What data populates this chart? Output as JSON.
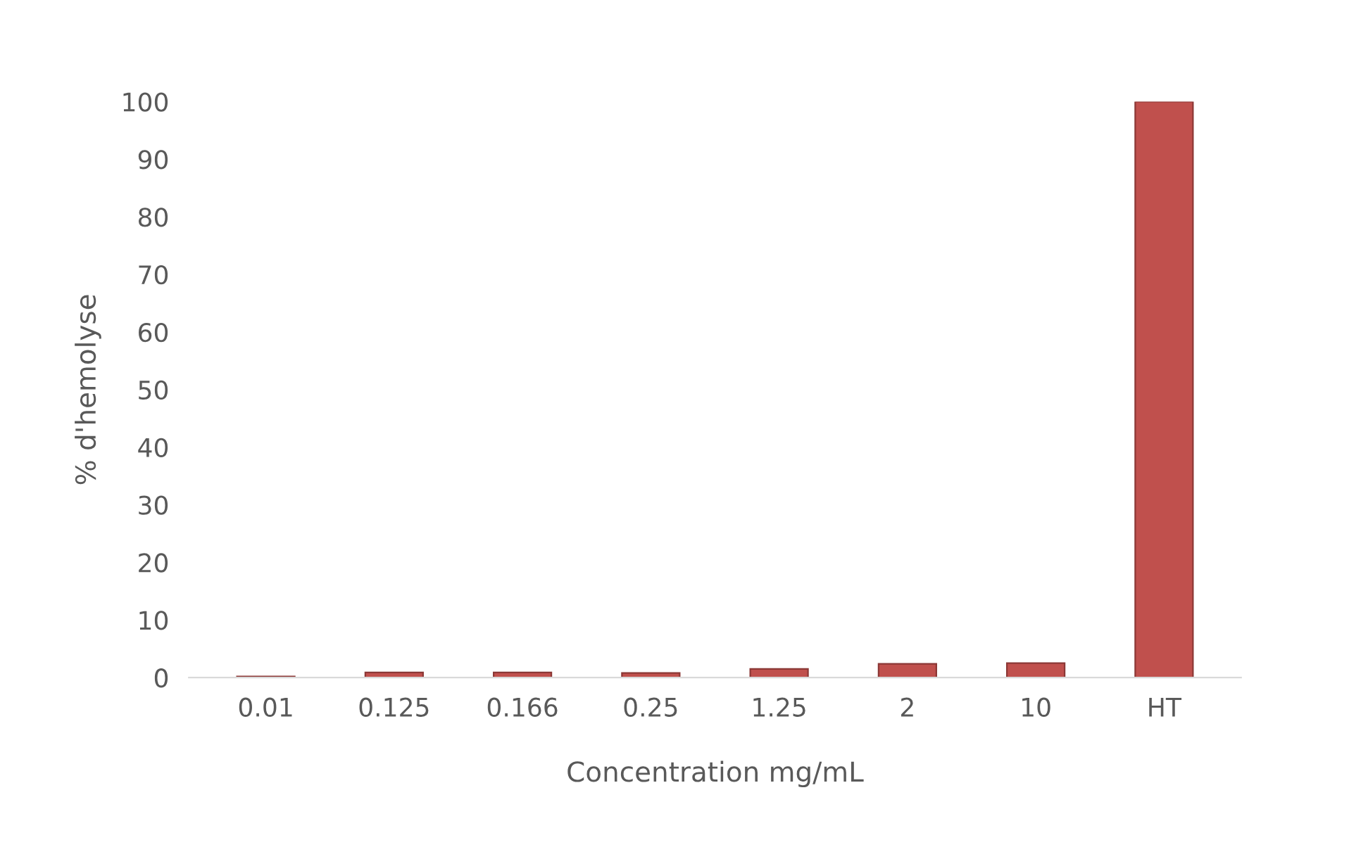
{
  "chart_data": {
    "type": "bar",
    "xlabel": "Concentration mg/mL",
    "ylabel": "% d'hemolyse",
    "categories": [
      "0.01",
      "0.125",
      "0.166",
      "0.25",
      "1.25",
      "2",
      "10",
      "HT"
    ],
    "values": [
      0.2,
      0.9,
      0.9,
      0.8,
      1.5,
      2.4,
      2.5,
      100
    ],
    "color": "#c0504d",
    "ylim": [
      0,
      100
    ],
    "yticks": [
      0,
      10,
      20,
      30,
      40,
      50,
      60,
      70,
      80,
      90,
      100
    ],
    "grid": false
  }
}
